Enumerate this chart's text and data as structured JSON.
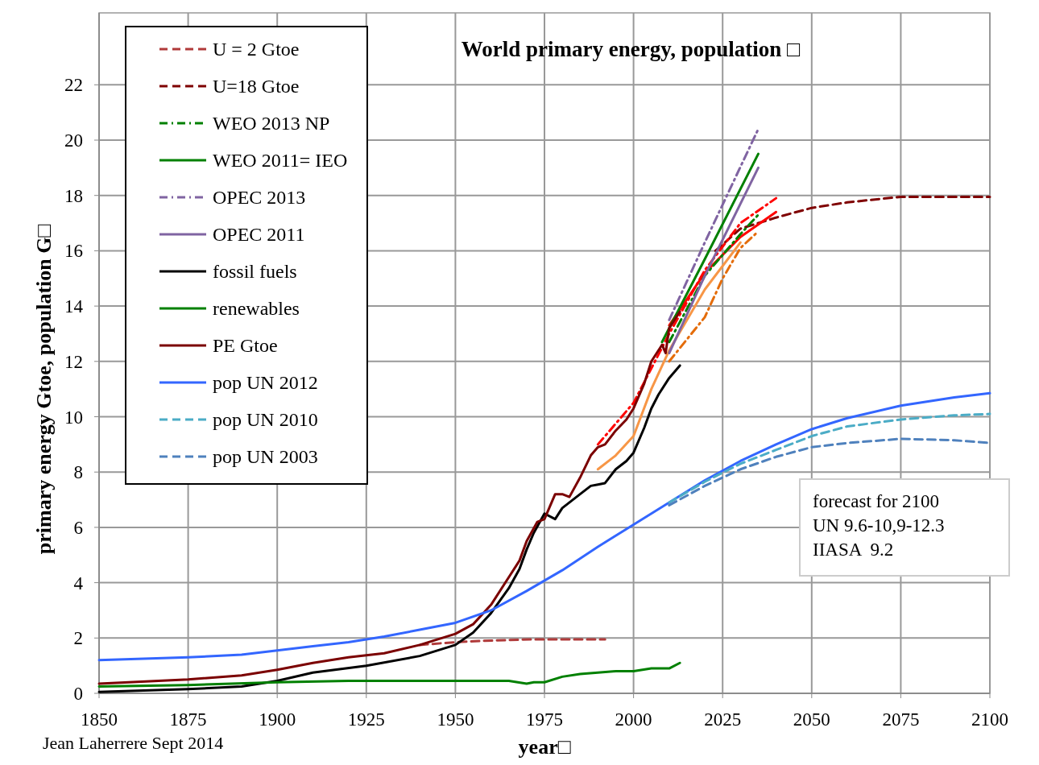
{
  "chart_data": {
    "type": "line",
    "title": "World primary energy, population □",
    "xlabel": "year□",
    "ylabel": "primary energy Gtoe, population G□",
    "xlim": [
      1850,
      2100
    ],
    "ylim": [
      0,
      24.6
    ],
    "xticks": [
      1850,
      1875,
      1900,
      1925,
      1950,
      1975,
      2000,
      2025,
      2050,
      2075,
      2100
    ],
    "yticks": [
      0,
      2,
      4,
      6,
      8,
      10,
      12,
      14,
      16,
      18,
      20,
      22
    ],
    "grid": true,
    "legend": "top left",
    "annotations": [
      "forecast for 2100\nUN 9.6-10,9-12.3\nIIASA  9.2",
      "Jean Laherrere Sept 2014"
    ],
    "series": [
      {
        "name": "U = 2 Gtoe",
        "color": "#b03a3a",
        "line_style": "dashed",
        "x": [
          1940,
          1950,
          1958,
          1971,
          1992
        ],
        "values": [
          1.75,
          1.85,
          1.9,
          1.95,
          1.95
        ]
      },
      {
        "name": "U=18 Gtoe",
        "color": "#7f0000",
        "line_style": "dashed",
        "x": [
          2023,
          2030,
          2040,
          2050,
          2060,
          2075,
          2100
        ],
        "values": [
          16.0,
          16.8,
          17.2,
          17.55,
          17.75,
          17.95,
          17.95
        ]
      },
      {
        "color": "#ff0000",
        "line_style": "dashdot",
        "x": [
          1990,
          2000,
          2010,
          2020,
          2030,
          2040
        ],
        "values": [
          9.0,
          10.5,
          13.0,
          15.3,
          17.0,
          17.9
        ]
      },
      {
        "color": "#ff0000",
        "line_style": "solid",
        "x": [
          2010,
          2020,
          2030,
          2040
        ],
        "values": [
          13.3,
          15.2,
          16.5,
          17.4
        ]
      },
      {
        "color": "#e46c0a",
        "line_style": "dashdot",
        "x": [
          2010,
          2015,
          2020,
          2025,
          2030,
          2035
        ],
        "values": [
          12.0,
          12.8,
          13.6,
          15.0,
          16.1,
          16.7
        ]
      },
      {
        "color": "#f79646",
        "line_style": "solid",
        "x": [
          1990,
          1995,
          2000,
          2005,
          2010,
          2020,
          2030
        ],
        "values": [
          8.1,
          8.6,
          9.3,
          11.0,
          12.4,
          14.6,
          16.3
        ]
      },
      {
        "name": "WEO 2013 NP",
        "color": "#008000",
        "line_style": "dashdot",
        "x": [
          2010,
          2020,
          2030,
          2035
        ],
        "values": [
          12.7,
          15.1,
          16.6,
          17.3
        ]
      },
      {
        "name": "WEO 2011= IEO",
        "color": "#008000",
        "line_style": "solid",
        "x": [
          2008,
          2020,
          2035
        ],
        "values": [
          12.7,
          15.7,
          19.5
        ]
      },
      {
        "name": "OPEC 2013",
        "color": "#8064a2",
        "line_style": "dashdot",
        "x": [
          2010,
          2020,
          2035
        ],
        "values": [
          13.5,
          16.3,
          20.4
        ]
      },
      {
        "name": "OPEC 2011",
        "color": "#8064a2",
        "line_style": "solid",
        "x": [
          2010,
          2020,
          2035
        ],
        "values": [
          12.3,
          15.1,
          19.0
        ]
      },
      {
        "name": "fossil fuels",
        "color": "#000000",
        "line_style": "solid",
        "x": [
          1850,
          1875,
          1890,
          1900,
          1910,
          1925,
          1940,
          1950,
          1955,
          1960,
          1965,
          1968,
          1970,
          1972,
          1975,
          1978,
          1980,
          1985,
          1988,
          1990,
          1992,
          1995,
          1998,
          2000,
          2003,
          2005,
          2007,
          2010,
          2013
        ],
        "values": [
          0.05,
          0.15,
          0.25,
          0.45,
          0.75,
          1.0,
          1.35,
          1.75,
          2.2,
          2.9,
          3.8,
          4.5,
          5.2,
          5.8,
          6.5,
          6.3,
          6.7,
          7.2,
          7.5,
          7.55,
          7.6,
          8.1,
          8.4,
          8.7,
          9.6,
          10.3,
          10.8,
          11.4,
          11.85
        ]
      },
      {
        "name": "renewables",
        "color": "#008000",
        "line_style": "solid",
        "x": [
          1850,
          1875,
          1900,
          1920,
          1950,
          1955,
          1960,
          1965,
          1970,
          1972,
          1975,
          1980,
          1985,
          1990,
          1995,
          2000,
          2005,
          2010,
          2013
        ],
        "values": [
          0.25,
          0.3,
          0.4,
          0.45,
          0.45,
          0.45,
          0.45,
          0.45,
          0.35,
          0.4,
          0.4,
          0.6,
          0.7,
          0.75,
          0.8,
          0.8,
          0.9,
          0.9,
          1.1
        ]
      },
      {
        "name": "PE Gtoe",
        "color": "#7b0000",
        "line_style": "solid",
        "x": [
          1850,
          1875,
          1890,
          1900,
          1910,
          1920,
          1930,
          1940,
          1950,
          1955,
          1960,
          1965,
          1968,
          1970,
          1973,
          1975,
          1978,
          1980,
          1982,
          1985,
          1988,
          1990,
          1992,
          1995,
          1998,
          2000,
          2003,
          2005,
          2008,
          2009,
          2010,
          2013
        ],
        "values": [
          0.35,
          0.5,
          0.65,
          0.85,
          1.1,
          1.3,
          1.45,
          1.75,
          2.15,
          2.5,
          3.2,
          4.2,
          4.8,
          5.5,
          6.2,
          6.3,
          7.2,
          7.2,
          7.1,
          7.8,
          8.6,
          8.9,
          9.0,
          9.5,
          9.9,
          10.3,
          11.2,
          12.0,
          12.6,
          12.3,
          13.2,
          13.8
        ]
      },
      {
        "name": "pop UN 2012",
        "color": "#3366ff",
        "line_style": "solid",
        "x": [
          1850,
          1875,
          1890,
          1900,
          1910,
          1920,
          1930,
          1940,
          1950,
          1960,
          1970,
          1980,
          1990,
          2000,
          2010,
          2020,
          2030,
          2040,
          2050,
          2060,
          2075,
          2090,
          2100
        ],
        "values": [
          1.2,
          1.3,
          1.4,
          1.55,
          1.7,
          1.85,
          2.05,
          2.3,
          2.55,
          3.0,
          3.7,
          4.45,
          5.3,
          6.1,
          6.9,
          7.7,
          8.4,
          9.0,
          9.55,
          9.95,
          10.4,
          10.7,
          10.85
        ]
      },
      {
        "name": "pop UN 2010",
        "color": "#4bacc6",
        "line_style": "dashed",
        "x": [
          2010,
          2020,
          2030,
          2040,
          2050,
          2060,
          2075,
          2090,
          2100
        ],
        "values": [
          6.9,
          7.65,
          8.3,
          8.8,
          9.3,
          9.65,
          9.9,
          10.05,
          10.1
        ]
      },
      {
        "name": "pop UN 2003",
        "color": "#4f81bd",
        "line_style": "dashed",
        "x": [
          2010,
          2020,
          2030,
          2040,
          2050,
          2060,
          2075,
          2090,
          2100
        ],
        "values": [
          6.8,
          7.5,
          8.1,
          8.55,
          8.9,
          9.05,
          9.2,
          9.15,
          9.05
        ]
      }
    ]
  }
}
